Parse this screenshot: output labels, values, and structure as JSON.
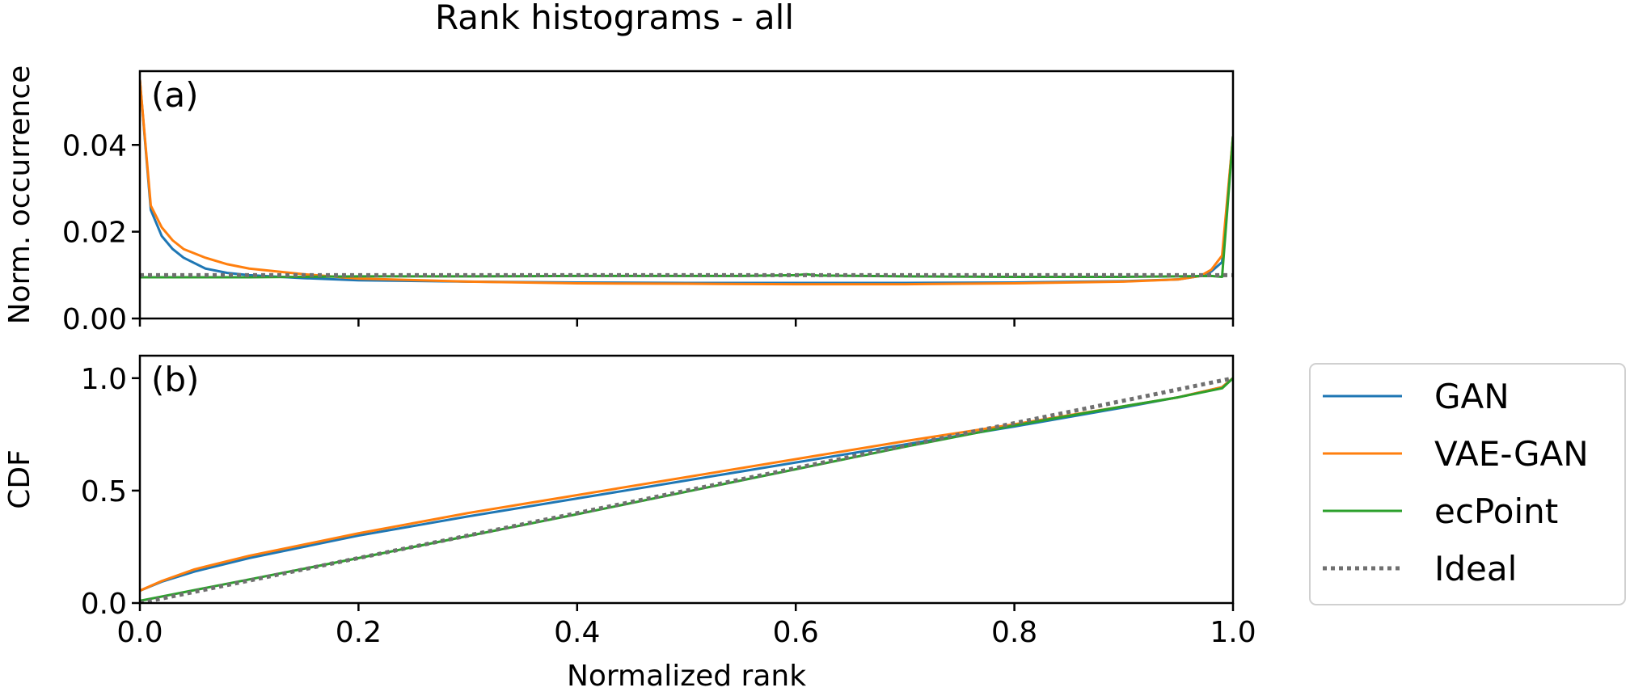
{
  "title": "Rank histograms - all",
  "legend": {
    "placement": "right of panel (b)",
    "entries": [
      {
        "label": "GAN",
        "color": "#1f77b4",
        "style": "solid"
      },
      {
        "label": "VAE-GAN",
        "color": "#ff7f0e",
        "style": "solid"
      },
      {
        "label": "ecPoint",
        "color": "#2ca02c",
        "style": "solid"
      },
      {
        "label": "Ideal",
        "color": "#707070",
        "style": "dotted"
      }
    ]
  },
  "chart_data": [
    {
      "type": "line",
      "panel": "(a)",
      "title": "Rank histograms - all",
      "xlabel": "",
      "ylabel": "Norm. occurrence",
      "xlim": [
        0.0,
        1.0
      ],
      "ylim": [
        0.0,
        0.057
      ],
      "xticks": [
        0.0,
        0.2,
        0.4,
        0.6,
        0.8,
        1.0
      ],
      "xtick_labels_shown": false,
      "yticks": [
        0.0,
        0.02,
        0.04
      ],
      "ytick_labels": [
        "0.00",
        "0.02",
        "0.04"
      ],
      "grid": false,
      "series": [
        {
          "name": "GAN",
          "color": "#1f77b4",
          "style": "solid",
          "x": [
            0.0,
            0.01,
            0.02,
            0.03,
            0.04,
            0.06,
            0.08,
            0.1,
            0.15,
            0.2,
            0.3,
            0.4,
            0.5,
            0.6,
            0.7,
            0.8,
            0.9,
            0.95,
            0.97,
            0.98,
            0.99,
            1.0
          ],
          "y": [
            0.055,
            0.025,
            0.019,
            0.016,
            0.014,
            0.0115,
            0.0105,
            0.01,
            0.0093,
            0.0088,
            0.0085,
            0.0083,
            0.0082,
            0.0082,
            0.0082,
            0.0083,
            0.0086,
            0.009,
            0.0098,
            0.0108,
            0.013,
            0.042
          ]
        },
        {
          "name": "VAE-GAN",
          "color": "#ff7f0e",
          "style": "solid",
          "x": [
            0.0,
            0.01,
            0.02,
            0.03,
            0.04,
            0.06,
            0.08,
            0.1,
            0.15,
            0.2,
            0.3,
            0.4,
            0.5,
            0.6,
            0.7,
            0.8,
            0.9,
            0.95,
            0.97,
            0.98,
            0.99,
            1.0
          ],
          "y": [
            0.055,
            0.026,
            0.021,
            0.018,
            0.016,
            0.014,
            0.0125,
            0.0115,
            0.0102,
            0.0092,
            0.0085,
            0.0081,
            0.008,
            0.0079,
            0.0079,
            0.0081,
            0.0085,
            0.009,
            0.0098,
            0.0112,
            0.0145,
            0.042
          ]
        },
        {
          "name": "ecPoint",
          "color": "#2ca02c",
          "style": "solid",
          "x": [
            0.0,
            0.05,
            0.1,
            0.15,
            0.2,
            0.3,
            0.4,
            0.5,
            0.55,
            0.6,
            0.61,
            0.62,
            0.7,
            0.8,
            0.9,
            0.95,
            0.98,
            0.99,
            1.0
          ],
          "y": [
            0.0095,
            0.0095,
            0.0095,
            0.0096,
            0.0097,
            0.0097,
            0.0098,
            0.0098,
            0.0098,
            0.01,
            0.0102,
            0.0099,
            0.0097,
            0.0096,
            0.0096,
            0.0097,
            0.0098,
            0.0096,
            0.042
          ]
        },
        {
          "name": "Ideal",
          "color": "#707070",
          "style": "dotted",
          "x": [
            0.0,
            1.0
          ],
          "y": [
            0.01,
            0.01
          ]
        }
      ]
    },
    {
      "type": "line",
      "panel": "(b)",
      "xlabel": "Normalized rank",
      "ylabel": "CDF",
      "xlim": [
        0.0,
        1.0
      ],
      "ylim": [
        0.0,
        1.1
      ],
      "xticks": [
        0.0,
        0.2,
        0.4,
        0.6,
        0.8,
        1.0
      ],
      "xtick_labels": [
        "0.0",
        "0.2",
        "0.4",
        "0.6",
        "0.8",
        "1.0"
      ],
      "yticks": [
        0.0,
        0.5,
        1.0
      ],
      "ytick_labels": [
        "0.0",
        "0.5",
        "1.0"
      ],
      "grid": false,
      "series": [
        {
          "name": "GAN",
          "color": "#1f77b4",
          "style": "solid",
          "x": [
            0.0,
            0.02,
            0.05,
            0.1,
            0.2,
            0.3,
            0.4,
            0.5,
            0.6,
            0.7,
            0.8,
            0.9,
            0.95,
            0.99,
            1.0
          ],
          "y": [
            0.055,
            0.095,
            0.14,
            0.2,
            0.3,
            0.385,
            0.465,
            0.545,
            0.625,
            0.705,
            0.785,
            0.87,
            0.915,
            0.96,
            1.0
          ]
        },
        {
          "name": "VAE-GAN",
          "color": "#ff7f0e",
          "style": "solid",
          "x": [
            0.0,
            0.02,
            0.05,
            0.1,
            0.2,
            0.3,
            0.4,
            0.5,
            0.6,
            0.7,
            0.8,
            0.9,
            0.95,
            0.99,
            1.0
          ],
          "y": [
            0.055,
            0.098,
            0.15,
            0.21,
            0.31,
            0.4,
            0.48,
            0.56,
            0.64,
            0.72,
            0.795,
            0.875,
            0.915,
            0.96,
            1.0
          ]
        },
        {
          "name": "ecPoint",
          "color": "#2ca02c",
          "style": "solid",
          "x": [
            0.0,
            0.1,
            0.2,
            0.3,
            0.4,
            0.5,
            0.6,
            0.7,
            0.8,
            0.9,
            0.95,
            0.99,
            1.0
          ],
          "y": [
            0.01,
            0.105,
            0.2,
            0.298,
            0.395,
            0.495,
            0.595,
            0.695,
            0.79,
            0.875,
            0.915,
            0.955,
            1.0
          ]
        },
        {
          "name": "Ideal",
          "color": "#707070",
          "style": "dotted",
          "x": [
            0.0,
            1.0
          ],
          "y": [
            0.0,
            1.0
          ]
        }
      ]
    }
  ]
}
